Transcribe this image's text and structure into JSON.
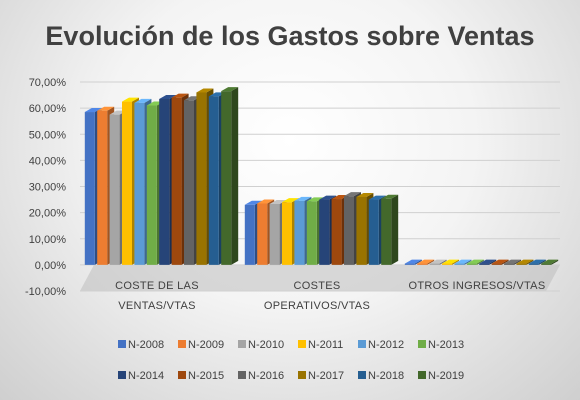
{
  "chart_data": {
    "type": "bar",
    "title": "Evolución de los Gastos sobre Ventas",
    "xlabel": "",
    "ylabel": "",
    "ylim": [
      -10,
      70
    ],
    "y_ticks": [
      "-10,00%",
      "0,00%",
      "10,00%",
      "20,00%",
      "30,00%",
      "40,00%",
      "50,00%",
      "60,00%",
      "70,00%"
    ],
    "categories": [
      [
        "COSTE DE LAS",
        "VENTAS/VTAS"
      ],
      [
        "COSTES",
        "OPERATIVOS/VTAS"
      ],
      [
        "OTROS INGRESOS/VTAS"
      ]
    ],
    "legend_position": "bottom",
    "three_d": true,
    "series": [
      {
        "name": "N-2008",
        "color": "#4472C4",
        "values": [
          58.5,
          23.0,
          0.5
        ]
      },
      {
        "name": "N-2009",
        "color": "#ED7D31",
        "values": [
          59.0,
          23.5,
          0.5
        ]
      },
      {
        "name": "N-2010",
        "color": "#A5A5A5",
        "values": [
          57.5,
          23.3,
          0.5
        ]
      },
      {
        "name": "N-2011",
        "color": "#FFC000",
        "values": [
          62.5,
          24.0,
          0.5
        ]
      },
      {
        "name": "N-2012",
        "color": "#5B9BD5",
        "values": [
          62.0,
          24.5,
          0.5
        ]
      },
      {
        "name": "N-2013",
        "color": "#70AD47",
        "values": [
          61.0,
          24.3,
          0.5
        ]
      },
      {
        "name": "N-2014",
        "color": "#264478",
        "values": [
          63.5,
          25.0,
          0.5
        ]
      },
      {
        "name": "N-2015",
        "color": "#9E480E",
        "values": [
          64.0,
          25.2,
          0.5
        ]
      },
      {
        "name": "N-2016",
        "color": "#636363",
        "values": [
          63.0,
          26.3,
          0.5
        ]
      },
      {
        "name": "N-2017",
        "color": "#997300",
        "values": [
          66.0,
          26.0,
          0.5
        ]
      },
      {
        "name": "N-2018",
        "color": "#255E91",
        "values": [
          64.5,
          25.0,
          0.5
        ]
      },
      {
        "name": "N-2019",
        "color": "#43682B",
        "values": [
          66.5,
          25.3,
          0.5
        ]
      }
    ]
  }
}
